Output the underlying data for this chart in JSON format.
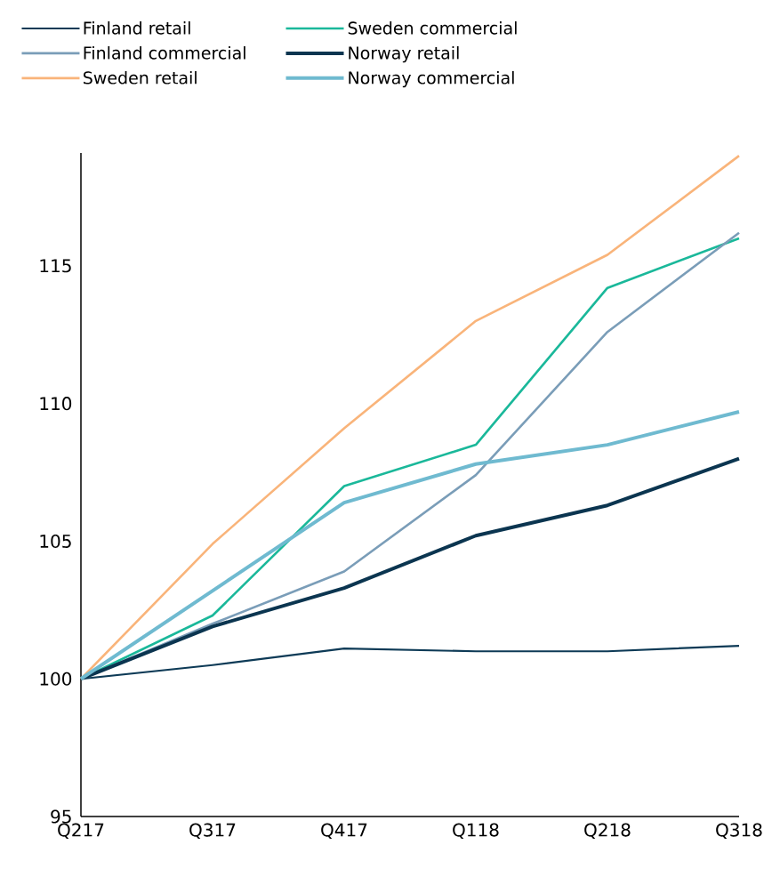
{
  "chart_data": {
    "type": "line",
    "categories": [
      "Q217",
      "Q317",
      "Q417",
      "Q118",
      "Q218",
      "Q318"
    ],
    "series": [
      {
        "name": "Finland retail",
        "color": "#0d3a56",
        "values": [
          100,
          100.5,
          101.1,
          101.0,
          101.0,
          101.2
        ]
      },
      {
        "name": "Sweden commercial",
        "color": "#1ab89a",
        "values": [
          100,
          102.3,
          107.0,
          108.5,
          114.2,
          116.0
        ]
      },
      {
        "name": "Finland commercial",
        "color": "#7a9db8",
        "values": [
          100,
          102.0,
          103.9,
          107.4,
          112.6,
          116.2
        ]
      },
      {
        "name": "Norway retail",
        "color": "#0b3550",
        "values": [
          100,
          101.9,
          103.3,
          105.2,
          106.3,
          108.0
        ]
      },
      {
        "name": "Sweden retail",
        "color": "#f9b47a",
        "values": [
          100,
          104.9,
          109.1,
          113.0,
          115.4,
          119.0
        ]
      },
      {
        "name": "Norway commercial",
        "color": "#6fbad0",
        "values": [
          100,
          103.2,
          106.4,
          107.8,
          108.5,
          109.7
        ]
      }
    ],
    "ylim": [
      95,
      119.1
    ],
    "yticks": [
      95,
      100,
      105,
      110,
      115
    ],
    "grid": false,
    "legend": "top left",
    "marker": "none",
    "line_style": "solid"
  }
}
